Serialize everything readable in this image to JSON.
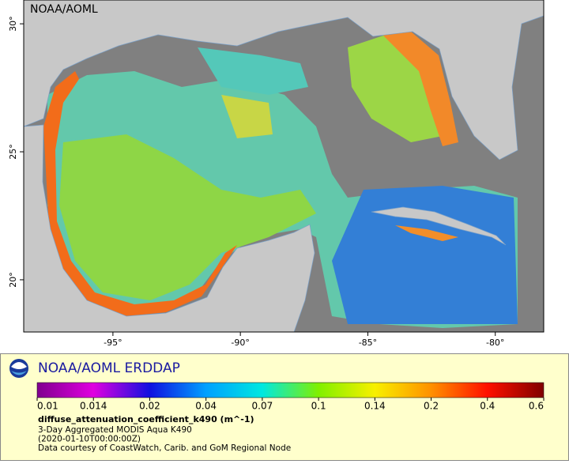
{
  "map": {
    "watermark": "NOAA/AOML",
    "xlim": [
      -98.5,
      -78.1
    ],
    "ylim": [
      17.96,
      30.93
    ],
    "xticks": [
      {
        "value": -95,
        "label": "-95°"
      },
      {
        "value": -90,
        "label": "-90°"
      },
      {
        "value": -85,
        "label": "-85°"
      },
      {
        "value": -80,
        "label": "-80°"
      }
    ],
    "yticks": [
      {
        "value": 20,
        "label": "20°"
      },
      {
        "value": 25,
        "label": "25°"
      },
      {
        "value": 30,
        "label": "30°"
      }
    ]
  },
  "legend": {
    "title": "NOAA/AOML ERDDAP",
    "colorbar": {
      "scale": "log",
      "ticks": [
        0.01,
        0.014,
        0.02,
        0.04,
        0.07,
        0.1,
        0.14,
        0.2,
        0.4,
        0.6
      ],
      "colors": [
        "#80008f",
        "#e000e0",
        "#1010e0",
        "#00a0ff",
        "#00e8e0",
        "#80f000",
        "#f8f000",
        "#ff9000",
        "#ff1000",
        "#800000"
      ]
    },
    "variable": "diffuse_attenuation_coefficient_k490 (m^-1)",
    "lines": [
      "3-Day Aggregated MODIS Aqua K490",
      "(2020-01-10T00:00:00Z)",
      "Data courtesy of CoastWatch, Carib. and GoM Regional Node"
    ]
  }
}
